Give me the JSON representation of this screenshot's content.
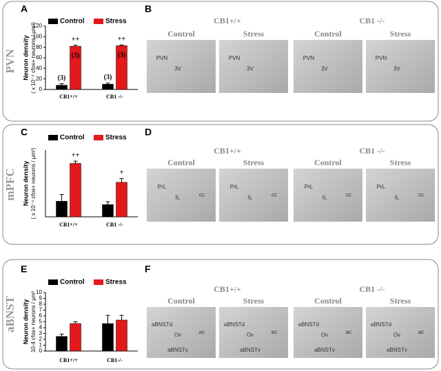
{
  "rows": [
    {
      "label": "PVN",
      "panels": [
        "A",
        "B"
      ],
      "genotypes": [
        "CB1+/+",
        "CB1 -/-"
      ],
      "conditions": [
        "Control",
        "Stress",
        "Control",
        "Stress"
      ],
      "image_labels": [
        [
          "PVN",
          "3V"
        ],
        [
          "PVN",
          "3V"
        ],
        [
          "PVN",
          "3V"
        ],
        [
          "PVN",
          "3V"
        ]
      ]
    },
    {
      "label": "mPFC",
      "panels": [
        "C",
        "D"
      ],
      "genotypes": [
        "CB1+/+",
        "CB1 -/-"
      ],
      "conditions": [
        "Control",
        "Stress",
        "Control",
        "Stress"
      ],
      "image_labels": [
        [
          "PrL",
          "IL",
          "cc"
        ],
        [
          "PrL",
          "IL",
          "cc"
        ],
        [
          "PrL",
          "IL",
          "cc"
        ],
        [
          "PrL",
          "IL",
          "cc"
        ]
      ]
    },
    {
      "label": "aBNST",
      "panels": [
        "E",
        "F"
      ],
      "genotypes": [
        "CB1+/+",
        "CB1 -/-"
      ],
      "conditions": [
        "Control",
        "Stress",
        "Control",
        "Stress"
      ],
      "image_labels": [
        [
          "aBNSTd",
          "Ov",
          "ac",
          "aBNSTv"
        ],
        [
          "aBNSTd",
          "Ov",
          "ac",
          "aBNSTv"
        ],
        [
          "aBNSTd",
          "Ov",
          "ac",
          "aBNSTv"
        ],
        [
          "aBNSTd",
          "Ov",
          "ac",
          "aBNSTv"
        ]
      ]
    }
  ],
  "chart_data": [
    {
      "type": "bar",
      "ylabel": "Neuron density",
      "ylabel2": "( x 10⁻⁴ cfos+ neurons / µm²)",
      "categories": [
        "CB1+/+",
        "CB1 -/-"
      ],
      "series": [
        {
          "name": "Control",
          "color": "#000000",
          "values": [
            8,
            10
          ],
          "errors": [
            3,
            2
          ],
          "annotations": [
            "(3)",
            "(3)"
          ]
        },
        {
          "name": "Stress",
          "color": "#e3191c",
          "values": [
            82,
            83
          ],
          "errors": [
            2,
            1.5
          ],
          "annotations": [
            "++",
            "++"
          ],
          "inner_annotations": [
            "(3)",
            "(3)"
          ]
        }
      ],
      "ylim": [
        0,
        120
      ],
      "yticks": [
        0,
        20,
        40,
        60,
        80,
        100,
        120
      ]
    },
    {
      "type": "bar",
      "ylabel": "Neuron density",
      "ylabel2": "( x 10⁻⁴ cfos+ neurons / µm²)",
      "categories": [
        "CB1+/+",
        "CB1 -/-"
      ],
      "series": [
        {
          "name": "Control",
          "color": "#000000",
          "values": [
            7,
            5.5
          ],
          "errors": [
            3,
            1.3
          ]
        },
        {
          "name": "Stress",
          "color": "#e3191c",
          "values": [
            24,
            15.5
          ],
          "errors": [
            1,
            1.7
          ],
          "annotations": [
            "++",
            "+"
          ]
        }
      ],
      "ylim": [
        0,
        30
      ]
    },
    {
      "type": "bar",
      "ylabel": "Neuron density",
      "ylabel2": "10-4 cfos+ neurons / µm²",
      "categories": [
        "CB1+/+",
        "CB1-/-"
      ],
      "series": [
        {
          "name": "Control",
          "color": "#000000",
          "values": [
            2.5,
            4.7
          ],
          "errors": [
            0.4,
            1.4
          ]
        },
        {
          "name": "Stress",
          "color": "#e3191c",
          "values": [
            4.7,
            5.3
          ],
          "errors": [
            0.3,
            0.8
          ]
        }
      ],
      "ylim": [
        0,
        10
      ],
      "yticks": [
        0,
        1,
        2,
        3,
        4,
        5,
        6,
        7,
        8,
        9,
        10
      ]
    }
  ]
}
